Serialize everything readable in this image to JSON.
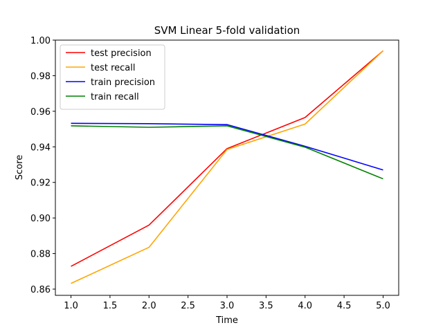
{
  "chart_data": {
    "type": "line",
    "title": "SVM Linear 5-fold validation",
    "xlabel": "Time",
    "ylabel": "Score",
    "x": [
      1.0,
      2.0,
      3.0,
      4.0,
      5.0
    ],
    "xlim": [
      0.8,
      5.2
    ],
    "ylim": [
      0.8565,
      1.0
    ],
    "xticks": [
      1.0,
      1.5,
      2.0,
      2.5,
      3.0,
      3.5,
      4.0,
      4.5,
      5.0
    ],
    "xtick_labels": [
      "1.0",
      "1.5",
      "2.0",
      "2.5",
      "3.0",
      "3.5",
      "4.0",
      "4.5",
      "5.0"
    ],
    "yticks": [
      0.86,
      0.88,
      0.9,
      0.92,
      0.94,
      0.96,
      0.98,
      1.0
    ],
    "ytick_labels": [
      "0.86",
      "0.88",
      "0.90",
      "0.92",
      "0.94",
      "0.96",
      "0.98",
      "1.00"
    ],
    "grid": false,
    "legend_position": "top-left",
    "series": [
      {
        "name": "test precision",
        "color": "#ff0000",
        "values": [
          0.8728,
          0.896,
          0.939,
          0.9565,
          0.994
        ]
      },
      {
        "name": "test recall",
        "color": "#ffa500",
        "values": [
          0.8632,
          0.8835,
          0.9385,
          0.9528,
          0.994
        ]
      },
      {
        "name": "train precision",
        "color": "#0000ff",
        "values": [
          0.9532,
          0.953,
          0.9525,
          0.9403,
          0.927
        ]
      },
      {
        "name": "train recall",
        "color": "#008000",
        "values": [
          0.9518,
          0.951,
          0.9518,
          0.9398,
          0.922
        ]
      }
    ]
  }
}
